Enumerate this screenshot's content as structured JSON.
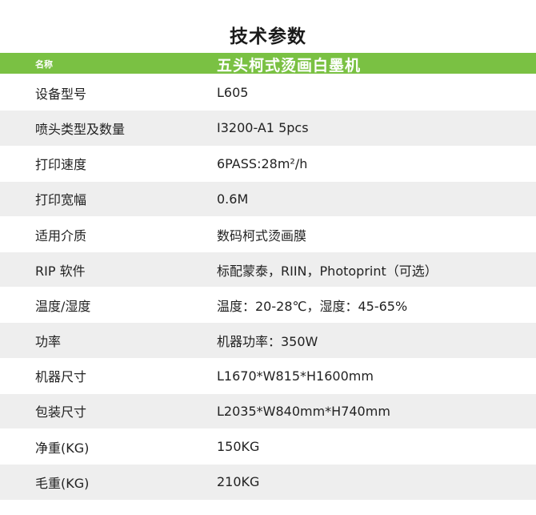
{
  "title": "技术参数",
  "header": {
    "label": "名称",
    "value": "五头柯式烫画白墨机"
  },
  "rows": [
    {
      "label": "设备型号",
      "value": "L605"
    },
    {
      "label": "喷头类型及数量",
      "value": "I3200-A1 5pcs"
    },
    {
      "label": "打印速度",
      "value": "6PASS:28m²/h"
    },
    {
      "label": "打印宽幅",
      "value": "0.6M"
    },
    {
      "label": "适用介质",
      "value": "数码柯式烫画膜"
    },
    {
      "label": "RIP 软件",
      "value": "标配蒙泰，RIIN，Photoprint（可选）"
    },
    {
      "label": "温度/湿度",
      "value": "温度：20-28℃，湿度：45-65%"
    },
    {
      "label": "功率",
      "value": "机器功率：350W"
    },
    {
      "label": "机器尺寸",
      "value": "L1670*W815*H1600mm"
    },
    {
      "label": "包装尺寸",
      "value": "L2035*W840mm*H740mm"
    },
    {
      "label": "净重(KG)",
      "value": "150KG"
    },
    {
      "label": "毛重(KG)",
      "value": "210KG"
    }
  ],
  "colors": {
    "header_bar": "#7ac143",
    "row_alt": "#eeeeee"
  }
}
